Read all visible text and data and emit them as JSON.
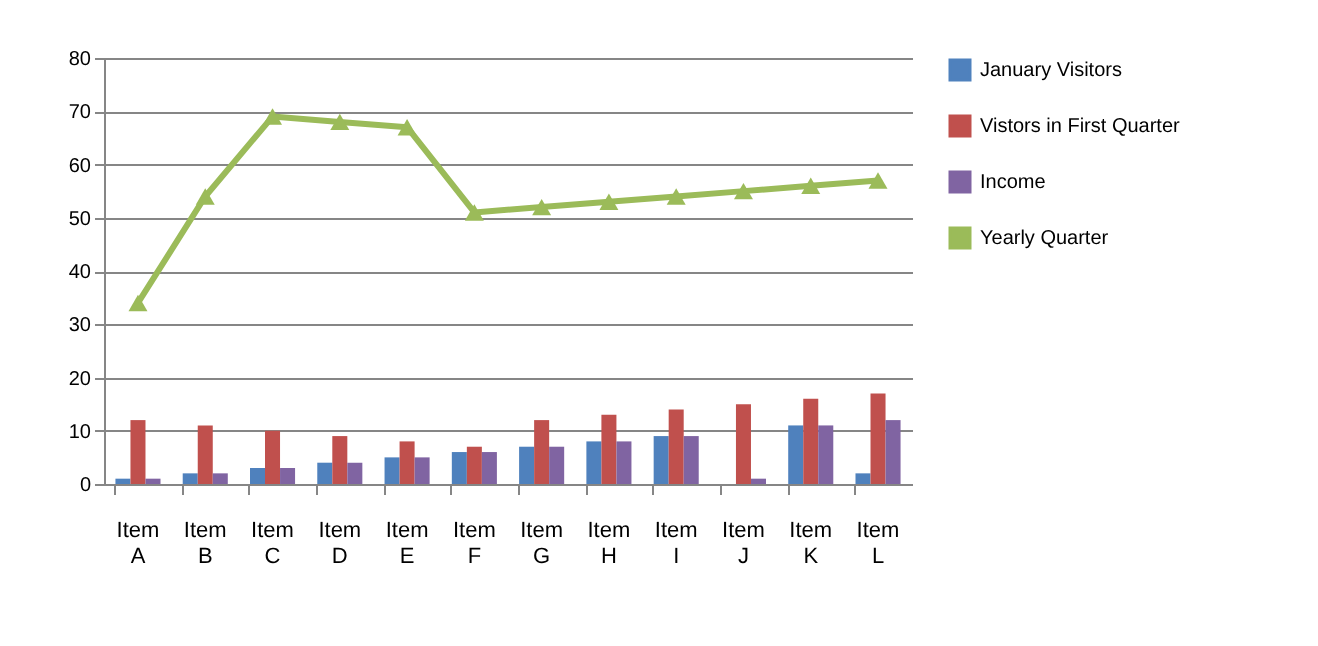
{
  "chart_data": {
    "type": "bar",
    "categories": [
      "Item A",
      "Item B",
      "Item C",
      "Item D",
      "Item E",
      "Item F",
      "Item G",
      "Item H",
      "Item I",
      "Item J",
      "Item K",
      "Item L"
    ],
    "series": [
      {
        "name": "January Visitors",
        "color": "#4f81bd",
        "values": [
          1,
          2,
          3,
          4,
          5,
          6,
          7,
          8,
          9,
          null,
          11,
          2
        ]
      },
      {
        "name": "Vistors in First Quarter",
        "color": "#c0504d",
        "values": [
          12,
          11,
          10,
          9,
          8,
          7,
          12,
          13,
          14,
          15,
          16,
          17
        ]
      },
      {
        "name": "Income",
        "color": "#8064a2",
        "values": [
          1,
          2,
          3,
          4,
          5,
          6,
          7,
          8,
          9,
          1,
          11,
          12
        ]
      },
      {
        "name": "Yearly Quarter",
        "color": "#9bbb59",
        "type": "line",
        "marker": "triangle",
        "line_style": "solid",
        "values": [
          34,
          54,
          69,
          68,
          67,
          51,
          52,
          53,
          54,
          55,
          56,
          57
        ]
      }
    ],
    "ylim": [
      0,
      80
    ],
    "yticks": [
      0,
      10,
      20,
      30,
      40,
      50,
      60,
      70,
      80
    ],
    "grid": "y",
    "legend": "right"
  }
}
